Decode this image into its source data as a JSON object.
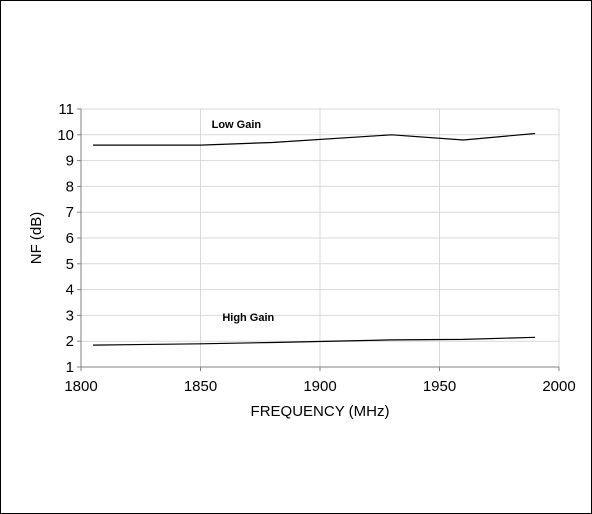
{
  "chart_data": {
    "type": "line",
    "title": "",
    "xlabel": "FREQUENCY (MHz)",
    "ylabel": "NF (dB)",
    "xlim": [
      1800,
      2000
    ],
    "ylim": [
      1,
      11
    ],
    "xticks": [
      1800,
      1850,
      1900,
      1950,
      2000
    ],
    "yticks": [
      1,
      2,
      3,
      4,
      5,
      6,
      7,
      8,
      9,
      10,
      11
    ],
    "grid": true,
    "series": [
      {
        "name": "Low Gain",
        "x": [
          1805,
          1850,
          1880,
          1930,
          1960,
          1990
        ],
        "y": [
          9.6,
          9.6,
          9.7,
          10.0,
          9.8,
          10.05
        ]
      },
      {
        "name": "High Gain",
        "x": [
          1805,
          1850,
          1880,
          1930,
          1960,
          1990
        ],
        "y": [
          1.85,
          1.9,
          1.95,
          2.05,
          2.07,
          2.15
        ]
      }
    ]
  }
}
